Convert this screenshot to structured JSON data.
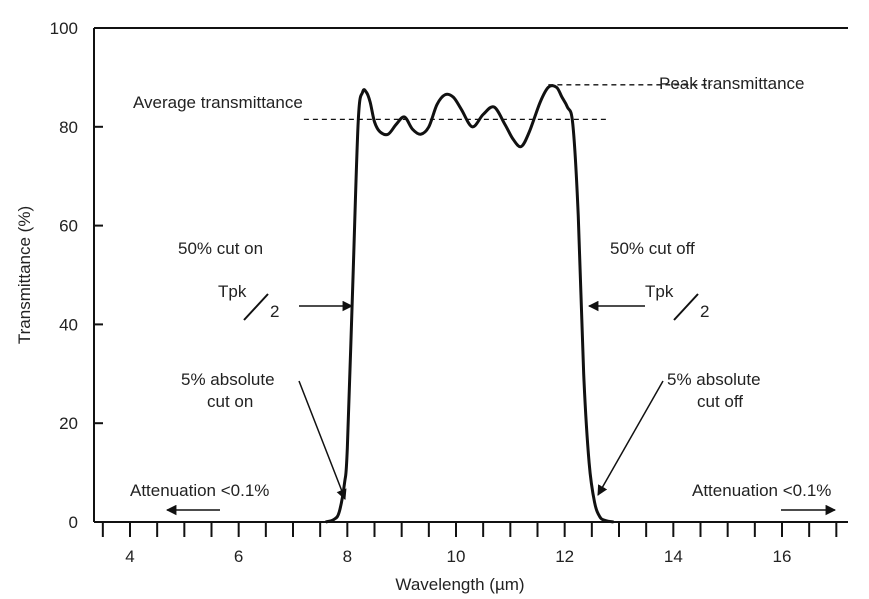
{
  "chart_data": {
    "type": "line",
    "title": "",
    "xlabel": "Wavelength (µm)",
    "ylabel": "Transmittance (%)",
    "xlim": [
      3.6,
      17.7
    ],
    "ylim": [
      0,
      100
    ],
    "x_ticks": [
      4,
      6,
      8,
      10,
      12,
      14,
      16
    ],
    "y_ticks": [
      0,
      20,
      40,
      60,
      80,
      100
    ],
    "x_minor_step": 0.5,
    "grid": false,
    "series": [
      {
        "name": "",
        "color": "#111111",
        "x": [
          7.6,
          7.75,
          7.85,
          7.95,
          8.0,
          8.1,
          8.2,
          8.28,
          8.35,
          8.42,
          8.5,
          8.6,
          8.75,
          8.9,
          9.05,
          9.2,
          9.35,
          9.5,
          9.65,
          9.8,
          9.95,
          10.1,
          10.3,
          10.5,
          10.7,
          10.9,
          11.05,
          11.2,
          11.35,
          11.55,
          11.7,
          11.85,
          11.95,
          12.05,
          12.15,
          12.25,
          12.35,
          12.45,
          12.55,
          12.65,
          12.75,
          12.9
        ],
        "y": [
          0,
          0.5,
          2,
          8,
          15,
          48,
          81,
          87,
          87,
          85,
          81,
          79,
          78.5,
          80.5,
          82,
          79.5,
          78.5,
          80,
          84.5,
          86.5,
          86,
          83.5,
          80,
          82.5,
          84,
          80.5,
          77.5,
          76,
          79,
          85,
          88,
          88,
          86,
          84,
          80.5,
          62,
          30,
          12,
          4,
          1,
          0.3,
          0
        ]
      }
    ],
    "reference_lines": {
      "average_transmittance": 81.5,
      "peak_transmittance": 88.5
    },
    "annotations": {
      "average_label": "Average transmittance",
      "peak_label": "Peak transmittance",
      "cut_on_50": "50% cut on",
      "cut_off_50": "50% cut off",
      "tpk_num": "Tpk",
      "tpk_den": "2",
      "abs_cut_on_line1": "5% absolute",
      "abs_cut_on_line2": "cut on",
      "abs_cut_off_line1": "5% absolute",
      "abs_cut_off_line2": "cut off",
      "attenuation_left": "Attenuation <0.1%",
      "attenuation_right": "Attenuation <0.1%"
    }
  }
}
